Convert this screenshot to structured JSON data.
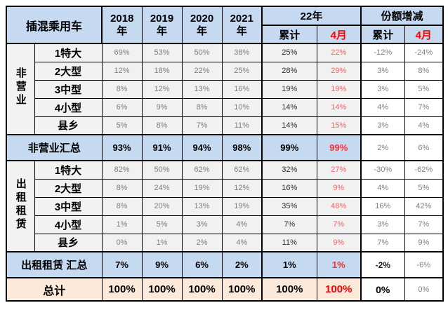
{
  "table": {
    "title": "插混乘用车"
  },
  "colors": {
    "header_blue": "#c5d9f1",
    "label_gray": "#f2f2f2",
    "total_peach": "#fde9d9",
    "value_gray_text": "#7f7f7f",
    "april_red_soft": "#ff6161",
    "summary_red": "#ff2f2f",
    "pure_red": "#ff0000"
  },
  "header": {
    "years": [
      "2018",
      "2019",
      "2020",
      "2021"
    ],
    "year_suffix": "年",
    "y22_label": "22年",
    "chg_label": "份额增减",
    "sub": [
      "累计",
      "4月",
      "累计",
      "4月"
    ]
  },
  "rows": [
    {
      "type": "data",
      "group": {
        "label": "非营业",
        "span": 5
      },
      "label": "1特大",
      "values": [
        "69%",
        "53%",
        "50%",
        "38%",
        "25%",
        "22%",
        "-12%",
        "-24%"
      ]
    },
    {
      "type": "data",
      "label": "2大型",
      "values": [
        "12%",
        "18%",
        "22%",
        "25%",
        "28%",
        "29%",
        "3%",
        "8%"
      ]
    },
    {
      "type": "data",
      "label": "3中型",
      "values": [
        "8%",
        "12%",
        "13%",
        "16%",
        "19%",
        "19%",
        "3%",
        "5%"
      ]
    },
    {
      "type": "data",
      "label": "4小型",
      "values": [
        "6%",
        "9%",
        "8%",
        "10%",
        "14%",
        "14%",
        "4%",
        "7%"
      ]
    },
    {
      "type": "data",
      "label": "县乡",
      "values": [
        "5%",
        "8%",
        "7%",
        "11%",
        "14%",
        "15%",
        "3%",
        "4%"
      ]
    },
    {
      "type": "summary",
      "label": "非营业汇总",
      "cum_change_bold": false,
      "values": [
        "93%",
        "91%",
        "94%",
        "98%",
        "99%",
        "99%",
        "2%",
        "6%"
      ]
    },
    {
      "type": "data",
      "group": {
        "label": "出租租赁",
        "span": 5
      },
      "label": "1特大",
      "values": [
        "82%",
        "50%",
        "62%",
        "62%",
        "32%",
        "27%",
        "-30%",
        "-62%"
      ]
    },
    {
      "type": "data",
      "label": "2大型",
      "values": [
        "8%",
        "24%",
        "19%",
        "12%",
        "16%",
        "9%",
        "4%",
        "5%"
      ]
    },
    {
      "type": "data",
      "label": "3中型",
      "values": [
        "8%",
        "20%",
        "13%",
        "19%",
        "35%",
        "48%",
        "16%",
        "42%"
      ]
    },
    {
      "type": "data",
      "label": "4小型",
      "values": [
        "1%",
        "5%",
        "3%",
        "4%",
        "7%",
        "7%",
        "3%",
        "7%"
      ]
    },
    {
      "type": "data",
      "label": "县乡",
      "values": [
        "0%",
        "1%",
        "2%",
        "4%",
        "11%",
        "9%",
        "7%",
        "9%"
      ]
    },
    {
      "type": "summary",
      "label": "出租租赁 汇总",
      "cum_change_bold": true,
      "values": [
        "7%",
        "9%",
        "6%",
        "2%",
        "1%",
        "1%",
        "-2%",
        "-6%"
      ]
    },
    {
      "type": "total",
      "label": "总计",
      "cum_change_bold": true,
      "values": [
        "100%",
        "100%",
        "100%",
        "100%",
        "100%",
        "100%",
        "0%",
        "0%"
      ]
    }
  ]
}
